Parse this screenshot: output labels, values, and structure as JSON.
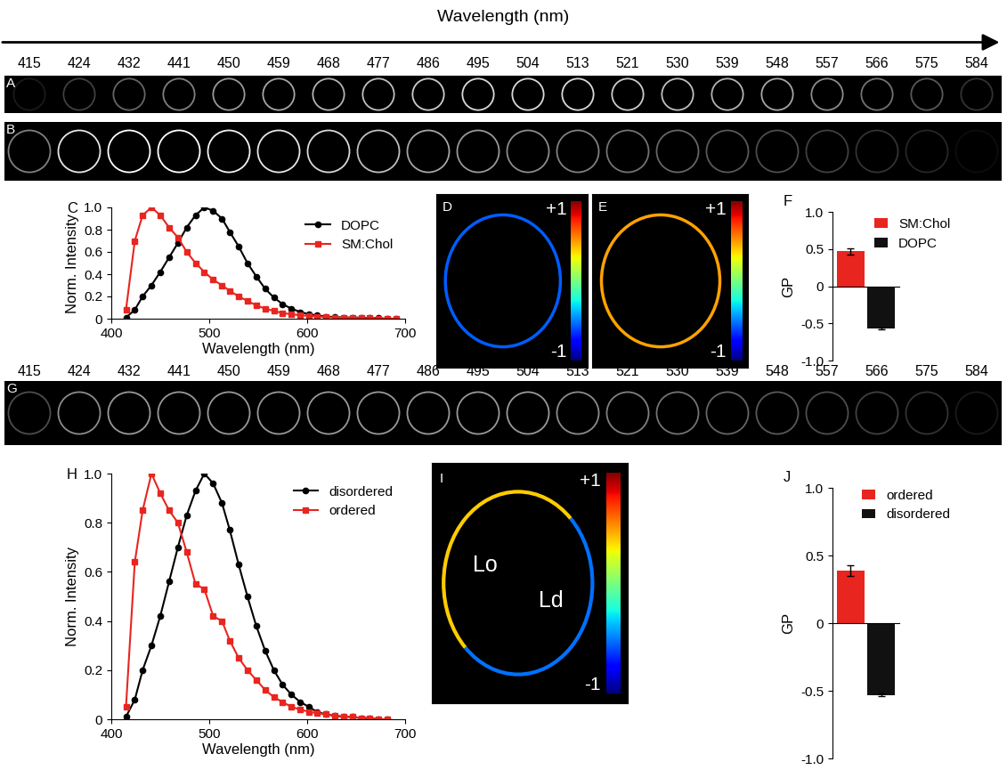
{
  "header": {
    "title": "Wavelength (nm)",
    "wavelengths": [
      415,
      424,
      432,
      441,
      450,
      459,
      468,
      477,
      486,
      495,
      504,
      513,
      521,
      530,
      539,
      548,
      557,
      566,
      575,
      584
    ]
  },
  "image_strips": [
    {
      "panel": "A",
      "intensity": [
        0.1,
        0.25,
        0.4,
        0.5,
        0.6,
        0.65,
        0.7,
        0.75,
        0.8,
        0.85,
        0.85,
        0.85,
        0.8,
        0.75,
        0.7,
        0.65,
        0.55,
        0.45,
        0.35,
        0.2
      ]
    },
    {
      "panel": "B",
      "intensity": [
        0.5,
        0.9,
        1.0,
        1.0,
        0.95,
        0.9,
        0.85,
        0.75,
        0.65,
        0.6,
        0.55,
        0.5,
        0.45,
        0.4,
        0.35,
        0.3,
        0.25,
        0.2,
        0.15,
        0.05
      ]
    },
    {
      "panel": "G",
      "intensity": [
        0.3,
        0.55,
        0.6,
        0.6,
        0.6,
        0.6,
        0.6,
        0.6,
        0.6,
        0.6,
        0.6,
        0.55,
        0.5,
        0.45,
        0.4,
        0.35,
        0.3,
        0.25,
        0.2,
        0.1
      ]
    }
  ],
  "gp_images": [
    {
      "panel": "D",
      "regions": [
        {
          "gp": -0.57
        }
      ],
      "colorbar": {
        "range": [
          -1,
          1
        ],
        "ticks": [
          {
            "value": 1,
            "label": "+1"
          },
          {
            "value": -1,
            "label": "-1"
          }
        ]
      }
    },
    {
      "panel": "E",
      "regions": [
        {
          "gp": 0.47
        }
      ],
      "colorbar": {
        "range": [
          -1,
          1
        ],
        "ticks": [
          {
            "value": 1,
            "label": "+1"
          },
          {
            "value": -1,
            "label": "-1"
          }
        ]
      }
    },
    {
      "panel": "I",
      "regions": [
        {
          "label": "Lo",
          "gp": 0.39
        },
        {
          "label": "Ld",
          "gp": -0.53
        }
      ],
      "colorbar": {
        "range": [
          -1,
          1
        ],
        "ticks": [
          {
            "value": 1,
            "label": "+1"
          },
          {
            "value": -1,
            "label": "-1"
          }
        ]
      }
    }
  ],
  "chart_data": [
    {
      "panel": "C",
      "type": "line",
      "x_label": "Wavelength (nm)",
      "y_label": "Norm. Intensity",
      "x": [
        415,
        424,
        432,
        441,
        450,
        459,
        468,
        477,
        486,
        495,
        504,
        513,
        521,
        530,
        539,
        548,
        557,
        566,
        575,
        584,
        593,
        602,
        610,
        619,
        628,
        637,
        646,
        655,
        664,
        673,
        682,
        691
      ],
      "series": [
        {
          "name": "DOPC",
          "color": "#000000",
          "marker": "circle",
          "values": [
            0.01,
            0.08,
            0.2,
            0.3,
            0.42,
            0.55,
            0.68,
            0.82,
            0.93,
            1.0,
            0.97,
            0.9,
            0.78,
            0.65,
            0.5,
            0.38,
            0.27,
            0.19,
            0.13,
            0.09,
            0.06,
            0.04,
            0.03,
            0.02,
            0.015,
            0.01,
            0.01,
            0.01,
            0.005,
            0.005,
            0.0,
            0.0
          ]
        },
        {
          "name": "SM:Chol",
          "color": "#e8251f",
          "marker": "square",
          "values": [
            0.08,
            0.7,
            0.93,
            1.0,
            0.93,
            0.82,
            0.73,
            0.6,
            0.5,
            0.42,
            0.35,
            0.3,
            0.25,
            0.2,
            0.16,
            0.12,
            0.09,
            0.07,
            0.05,
            0.04,
            0.03,
            0.025,
            0.02,
            0.015,
            0.01,
            0.01,
            0.01,
            0.005,
            0.005,
            0.0,
            0.0,
            0.0
          ]
        }
      ],
      "xlim": [
        400,
        700
      ],
      "xticks": [
        400,
        500,
        600,
        700
      ],
      "ylim": [
        0,
        1.0
      ],
      "yticks": [
        0,
        0.2,
        0.4,
        0.6,
        0.8,
        {
          "value": 1.0,
          "label": "1.0"
        }
      ],
      "legend": "upper right"
    },
    {
      "panel": "F",
      "type": "bar",
      "y_label": "GP",
      "categories": [
        null,
        null
      ],
      "series": [
        {
          "name": "SM:Chol",
          "color": "#e8251f",
          "values": [
            0.47,
            null
          ],
          "errors": [
            0.04,
            null
          ]
        },
        {
          "name": "DOPC",
          "color": "#111111",
          "values": [
            null,
            -0.57
          ],
          "errors": [
            null,
            0.01
          ]
        }
      ],
      "ylim": [
        -1.0,
        1.0
      ],
      "yticks": [
        {
          "value": -1.0,
          "label": "-1.0"
        },
        -0.5,
        0,
        0.5,
        {
          "value": 1.0,
          "label": "1.0"
        }
      ],
      "tick_labels": "y",
      "legend": "upper right"
    },
    {
      "panel": "H",
      "type": "line",
      "x_label": "Wavelength (nm)",
      "y_label": "Norm. Intensity",
      "x": [
        415,
        424,
        432,
        441,
        450,
        459,
        468,
        477,
        486,
        495,
        504,
        513,
        521,
        530,
        539,
        548,
        557,
        566,
        575,
        584,
        593,
        602,
        610,
        619,
        628,
        637,
        646,
        655,
        664,
        673,
        682
      ],
      "series": [
        {
          "name": "disordered",
          "color": "#000000",
          "marker": "circle",
          "values": [
            0.01,
            0.08,
            0.2,
            0.3,
            0.42,
            0.56,
            0.7,
            0.83,
            0.93,
            1.0,
            0.96,
            0.88,
            0.77,
            0.63,
            0.5,
            0.38,
            0.28,
            0.2,
            0.14,
            0.1,
            0.07,
            0.05,
            0.03,
            0.02,
            0.015,
            0.01,
            0.01,
            0.005,
            0.005,
            0.0,
            0.0
          ]
        },
        {
          "name": "ordered",
          "color": "#e8251f",
          "marker": "square",
          "values": [
            0.05,
            0.64,
            0.85,
            1.0,
            0.92,
            0.85,
            0.8,
            0.68,
            0.55,
            0.53,
            0.42,
            0.4,
            0.32,
            0.25,
            0.2,
            0.16,
            0.12,
            0.09,
            0.07,
            0.05,
            0.04,
            0.03,
            0.025,
            0.02,
            0.015,
            0.01,
            0.01,
            0.005,
            0.005,
            0.0,
            0.0
          ]
        }
      ],
      "xlim": [
        400,
        700
      ],
      "xticks": [
        400,
        500,
        600,
        700
      ],
      "ylim": [
        0,
        1.0
      ],
      "yticks": [
        0,
        0.2,
        0.4,
        0.6,
        0.8,
        {
          "value": 1.0,
          "label": "1.0"
        }
      ],
      "legend": "upper right"
    },
    {
      "panel": "J",
      "type": "bar",
      "y_label": "GP",
      "categories": [
        null,
        null
      ],
      "series": [
        {
          "name": "ordered",
          "color": "#e8251f",
          "values": [
            0.39,
            null
          ],
          "errors": [
            0.04,
            null
          ]
        },
        {
          "name": "disordered",
          "color": "#111111",
          "values": [
            null,
            -0.53
          ],
          "errors": [
            null,
            0.01
          ]
        }
      ],
      "ylim": [
        -1.0,
        1.0
      ],
      "yticks": [
        {
          "value": -1.0,
          "label": "-1.0"
        },
        -0.5,
        0,
        0.5,
        {
          "value": 1.0,
          "label": "1.0"
        }
      ],
      "tick_labels": "y",
      "legend": "upper right"
    }
  ]
}
